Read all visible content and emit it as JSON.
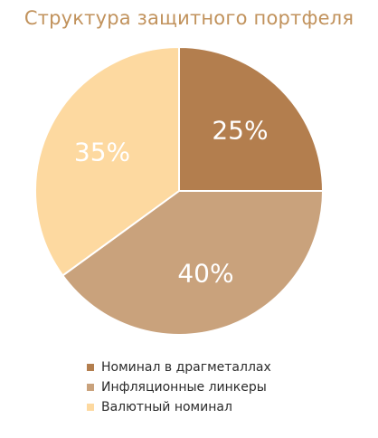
{
  "chart_data": {
    "type": "pie",
    "title": "Структура защитного портфеля",
    "slices": [
      {
        "label": "Номинал в драгметаллах",
        "value": 25,
        "display": "25%",
        "color": "#b37e4e"
      },
      {
        "label": "Инфляционные линкеры",
        "value": 40,
        "display": "40%",
        "color": "#c9a27c"
      },
      {
        "label": "Валютный номинал",
        "value": 35,
        "display": "35%",
        "color": "#fdd9a0"
      }
    ],
    "legend_position": "bottom"
  },
  "colors": {
    "title": "#c1925c",
    "separator": "#ffffff",
    "slice_label": "#ffffff"
  }
}
